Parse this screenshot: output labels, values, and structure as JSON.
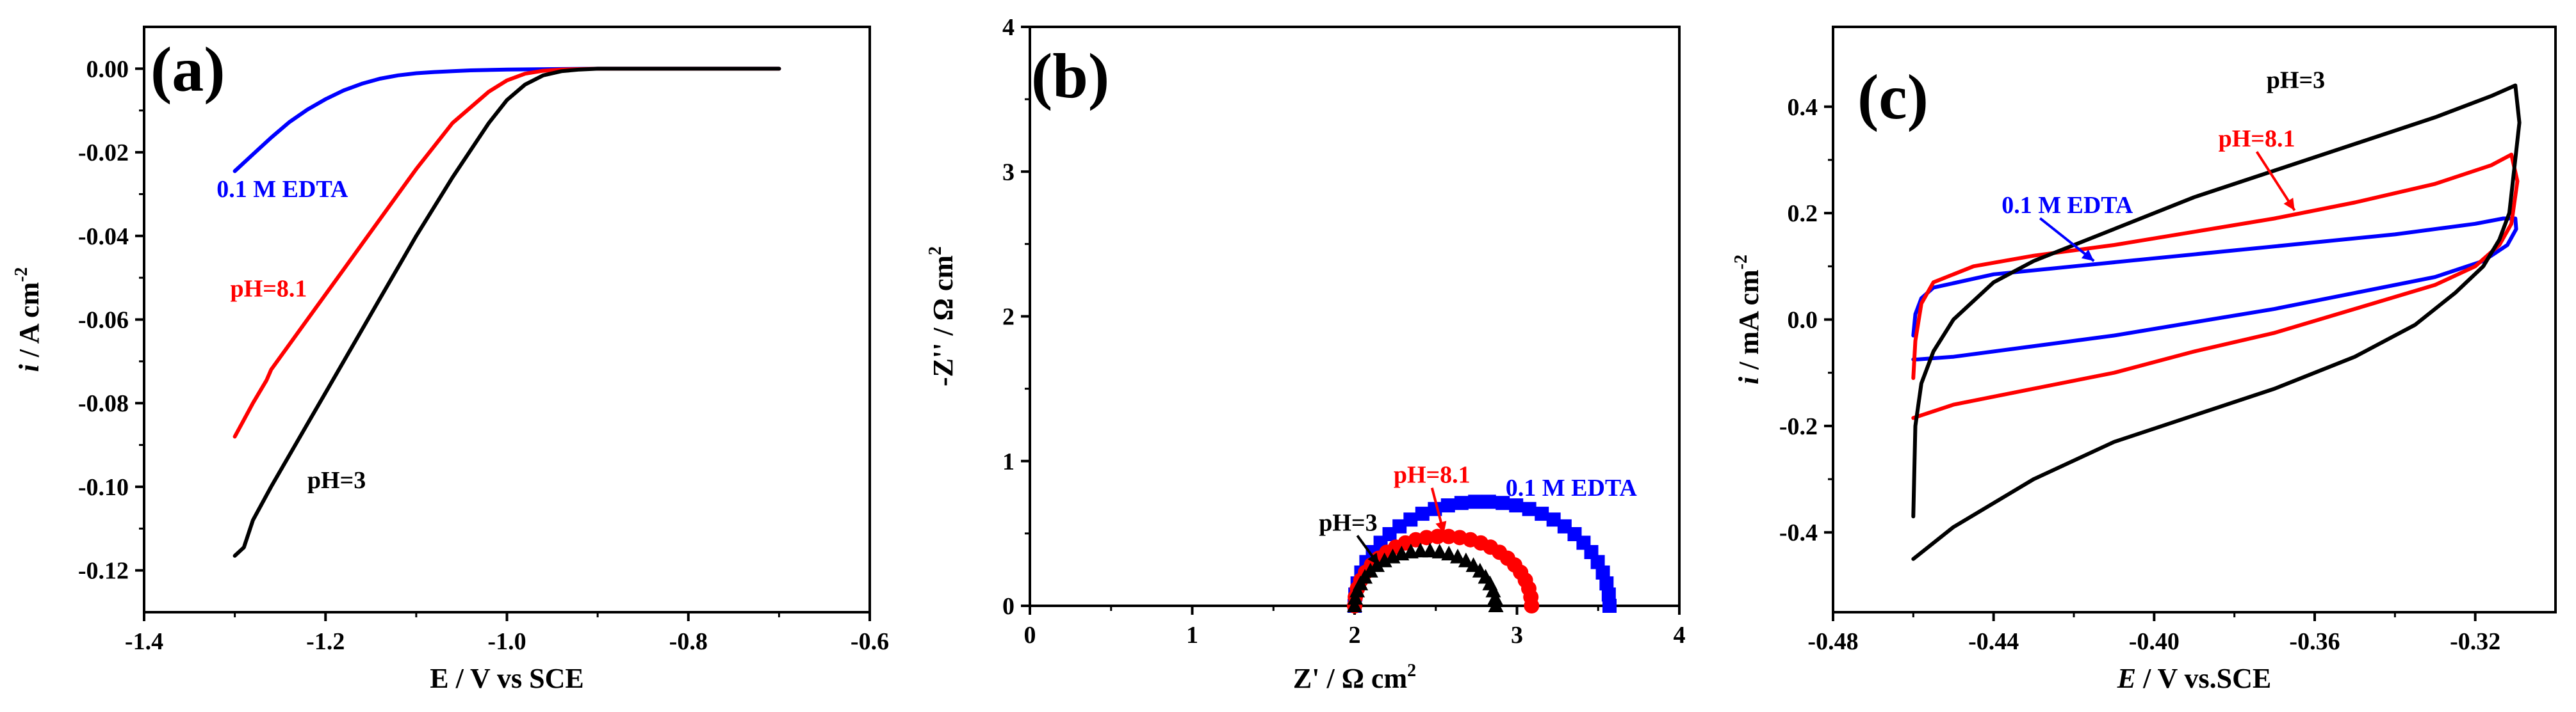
{
  "chart_data": [
    {
      "type": "line",
      "panel_label": "(a)",
      "xlabel": "E / V vs SCE",
      "ylabel": "i / A cm",
      "ylabel_italic": "i",
      "ylabel_rest": " / A cm",
      "ylabel_sup": "-2",
      "xlim": [
        -1.4,
        -0.6
      ],
      "ylim": [
        -0.13,
        0.01
      ],
      "xticks": [
        -1.4,
        -1.2,
        -1.0,
        -0.8,
        -0.6
      ],
      "xtick_labels": [
        "-1.4",
        "-1.2",
        "-1.0",
        "-0.8",
        "-0.6"
      ],
      "yticks": [
        0.0,
        -0.02,
        -0.04,
        -0.06,
        -0.08,
        -0.1,
        -0.12
      ],
      "ytick_labels": [
        "0.00",
        "-0.02",
        "-0.04",
        "-0.06",
        "-0.08",
        "-0.10",
        "-0.12"
      ],
      "series": [
        {
          "name": "0.1 M EDTA",
          "color": "#0000ff",
          "x": [
            -1.3,
            -1.28,
            -1.26,
            -1.24,
            -1.22,
            -1.2,
            -1.18,
            -1.16,
            -1.14,
            -1.12,
            -1.1,
            -1.08,
            -1.06,
            -1.04,
            -1.0,
            -0.95,
            -0.9,
            -0.8,
            -0.7
          ],
          "y": [
            -0.0245,
            -0.0205,
            -0.0165,
            -0.0128,
            -0.0098,
            -0.0073,
            -0.0052,
            -0.0036,
            -0.0024,
            -0.0016,
            -0.0011,
            -0.0008,
            -0.0006,
            -0.0004,
            -0.0002,
            -0.0001,
            0.0,
            0.0,
            0.0
          ]
        },
        {
          "name": "pH=8.1",
          "color": "#ff0000",
          "x": [
            -1.3,
            -1.28,
            -1.265,
            -1.26,
            -1.22,
            -1.18,
            -1.14,
            -1.1,
            -1.06,
            -1.02,
            -1.0,
            -0.98,
            -0.96,
            -0.94,
            -0.92,
            -0.9,
            -0.85,
            -0.8,
            -0.7
          ],
          "y": [
            -0.088,
            -0.08,
            -0.0745,
            -0.072,
            -0.06,
            -0.048,
            -0.036,
            -0.024,
            -0.013,
            -0.0055,
            -0.0028,
            -0.0012,
            -0.0005,
            -0.0002,
            -0.0001,
            0.0,
            0.0,
            0.0,
            0.0
          ]
        },
        {
          "name": "pH=3",
          "color": "#000000",
          "x": [
            -1.3,
            -1.29,
            -1.28,
            -1.26,
            -1.22,
            -1.18,
            -1.14,
            -1.1,
            -1.06,
            -1.02,
            -1.0,
            -0.98,
            -0.96,
            -0.94,
            -0.92,
            -0.9,
            -0.85,
            -0.8,
            -0.7
          ],
          "y": [
            -0.1165,
            -0.1145,
            -0.108,
            -0.1,
            -0.085,
            -0.07,
            -0.055,
            -0.04,
            -0.026,
            -0.013,
            -0.0075,
            -0.0038,
            -0.0016,
            -0.0006,
            -0.0002,
            0.0,
            0.0,
            0.0,
            0.0
          ]
        }
      ],
      "annotations": [
        {
          "text": "0.1 M EDTA",
          "color": "#0000ff",
          "x": -1.32,
          "y": -0.0307
        },
        {
          "text": "pH=8.1",
          "color": "#ff0000",
          "x": -1.305,
          "y": -0.0545
        },
        {
          "text": "pH=3",
          "color": "#000000",
          "x": -1.22,
          "y": -0.1003
        }
      ]
    },
    {
      "type": "scatter",
      "panel_label": "(b)",
      "xlabel": "Z' / Ω cm",
      "xlabel_sup": "2",
      "ylabel": "-Z'' / Ω cm",
      "ylabel_sup": "2",
      "xlim": [
        0,
        4
      ],
      "ylim": [
        0,
        4
      ],
      "xticks": [
        0,
        1,
        2,
        3,
        4
      ],
      "xtick_labels": [
        "0",
        "1",
        "2",
        "3",
        "4"
      ],
      "yticks": [
        0,
        1,
        2,
        3,
        4
      ],
      "ytick_labels": [
        "0",
        "1",
        "2",
        "3",
        "4"
      ],
      "series": [
        {
          "name": "0.1 M EDTA",
          "color": "#0000ff",
          "marker": "square",
          "arc": {
            "x_start": 2.0,
            "x_end": 3.57,
            "peak": 0.72
          },
          "points": 30
        },
        {
          "name": "pH=8.1",
          "color": "#ff0000",
          "marker": "circle",
          "arc": {
            "x_start": 2.0,
            "x_end": 3.09,
            "peak": 0.48
          },
          "points": 26
        },
        {
          "name": "pH=3",
          "color": "#000000",
          "marker": "triangle",
          "arc": {
            "x_start": 2.0,
            "x_end": 2.87,
            "peak": 0.38
          },
          "points": 24
        }
      ],
      "annotations": [
        {
          "text": "pH=8.1",
          "color": "#ff0000",
          "x": 2.24,
          "y": 0.85,
          "arrow_to": [
            2.55,
            0.5
          ]
        },
        {
          "text": "0.1 M EDTA",
          "color": "#0000ff",
          "x": 2.93,
          "y": 0.76
        },
        {
          "text": "pH=3",
          "color": "#000000",
          "x": 1.78,
          "y": 0.52,
          "arrow_to": [
            2.15,
            0.28
          ]
        }
      ]
    },
    {
      "type": "line",
      "panel_label": "(c)",
      "xlabel": "E / V vs.SCE",
      "xlabel_italic": "E",
      "xlabel_rest": " / V vs.SCE",
      "ylabel": "i / mA cm",
      "ylabel_italic": "i",
      "ylabel_rest": " / mA cm",
      "ylabel_sup": "-2",
      "xlim": [
        -0.48,
        -0.3
      ],
      "ylim": [
        -0.55,
        0.55
      ],
      "xticks": [
        -0.48,
        -0.44,
        -0.4,
        -0.36,
        -0.32
      ],
      "xtick_labels": [
        "-0.48",
        "-0.44",
        "-0.40",
        "-0.36",
        "-0.32"
      ],
      "yticks": [
        -0.4,
        -0.2,
        0.0,
        0.2,
        0.4
      ],
      "ytick_labels": [
        "-0.4",
        "-0.2",
        "0.0",
        "0.2",
        "0.4"
      ],
      "series": [
        {
          "name": "0.1 M EDTA",
          "color": "#0000ff",
          "x": [
            -0.46,
            -0.4595,
            -0.458,
            -0.455,
            -0.44,
            -0.42,
            -0.4,
            -0.38,
            -0.36,
            -0.34,
            -0.32,
            -0.313,
            -0.31,
            -0.3098,
            -0.312,
            -0.318,
            -0.33,
            -0.35,
            -0.37,
            -0.39,
            -0.41,
            -0.43,
            -0.45,
            -0.459,
            -0.46
          ],
          "y": [
            -0.03,
            0.01,
            0.04,
            0.06,
            0.085,
            0.1,
            0.115,
            0.13,
            0.145,
            0.16,
            0.18,
            0.19,
            0.19,
            0.17,
            0.14,
            0.11,
            0.08,
            0.05,
            0.02,
            -0.005,
            -0.03,
            -0.05,
            -0.07,
            -0.075,
            -0.075
          ]
        },
        {
          "name": "pH=8.1",
          "color": "#ff0000",
          "x": [
            -0.46,
            -0.4595,
            -0.458,
            -0.455,
            -0.445,
            -0.43,
            -0.41,
            -0.39,
            -0.37,
            -0.35,
            -0.33,
            -0.316,
            -0.311,
            -0.3095,
            -0.311,
            -0.314,
            -0.32,
            -0.33,
            -0.35,
            -0.37,
            -0.39,
            -0.41,
            -0.43,
            -0.45,
            -0.458,
            -0.46
          ],
          "y": [
            -0.11,
            -0.04,
            0.03,
            0.07,
            0.1,
            0.12,
            0.14,
            0.165,
            0.19,
            0.22,
            0.255,
            0.29,
            0.31,
            0.26,
            0.18,
            0.14,
            0.1,
            0.065,
            0.02,
            -0.025,
            -0.06,
            -0.1,
            -0.13,
            -0.16,
            -0.18,
            -0.185
          ]
        },
        {
          "name": "pH=3",
          "color": "#000000",
          "x": [
            -0.46,
            -0.4595,
            -0.458,
            -0.455,
            -0.45,
            -0.44,
            -0.43,
            -0.41,
            -0.39,
            -0.37,
            -0.35,
            -0.33,
            -0.316,
            -0.31,
            -0.309,
            -0.3115,
            -0.314,
            -0.318,
            -0.325,
            -0.335,
            -0.35,
            -0.37,
            -0.39,
            -0.41,
            -0.43,
            -0.45,
            -0.46
          ],
          "y": [
            -0.37,
            -0.2,
            -0.12,
            -0.06,
            0.0,
            0.07,
            0.11,
            0.17,
            0.23,
            0.28,
            0.33,
            0.38,
            0.42,
            0.44,
            0.37,
            0.2,
            0.15,
            0.1,
            0.05,
            -0.01,
            -0.07,
            -0.13,
            -0.18,
            -0.23,
            -0.3,
            -0.39,
            -0.45
          ]
        }
      ],
      "annotations": [
        {
          "text": "pH=3",
          "color": "#000000",
          "x": -0.372,
          "y": 0.435
        },
        {
          "text": "pH=8.1",
          "color": "#ff0000",
          "x": -0.384,
          "y": 0.325,
          "arrow_to": [
            -0.365,
            0.205
          ]
        },
        {
          "text": "0.1 M EDTA",
          "color": "#0000ff",
          "x": -0.438,
          "y": 0.2,
          "arrow_to": [
            -0.415,
            0.11
          ]
        }
      ]
    }
  ]
}
